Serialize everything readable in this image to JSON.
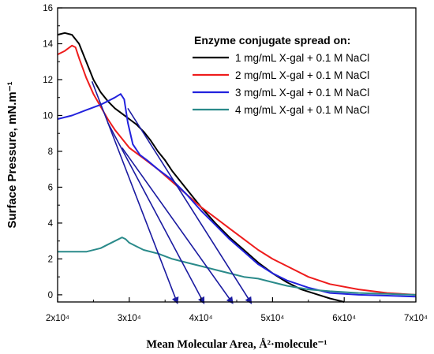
{
  "chart_data": {
    "type": "line",
    "xlabel": "Mean Molecular Area, Å²·molecule⁻¹",
    "ylabel": "Surface Pressure, mN.m⁻¹",
    "xlim": [
      20000,
      70000
    ],
    "ylim": [
      -0.4,
      16
    ],
    "x_ticks": [
      20000,
      30000,
      40000,
      50000,
      60000,
      70000
    ],
    "x_tick_labels": [
      "2x10⁴",
      "3x10⁴",
      "4x10⁴",
      "5x10⁴",
      "6x10⁴",
      "7x10⁴"
    ],
    "y_ticks": [
      0,
      2,
      4,
      6,
      8,
      10,
      12,
      14,
      16
    ],
    "y_tick_labels": [
      "0",
      "2",
      "4",
      "6",
      "8",
      "10",
      "12",
      "14",
      "16"
    ],
    "grid": false,
    "legend": {
      "title": "Enzyme conjugate spread on:",
      "placement": "top-right"
    },
    "series": [
      {
        "name": "1 mg/mL X-gal + 0.1 M NaCl",
        "color": "#000000",
        "x": [
          20000,
          21000,
          22000,
          23000,
          24000,
          25000,
          26000,
          27000,
          28000,
          29000,
          30000,
          31000,
          32000,
          33000,
          34000,
          35000,
          36000,
          38000,
          40000,
          42000,
          44000,
          46000,
          48000,
          50000,
          52000,
          54000,
          56000,
          58000,
          60000
        ],
        "y": [
          14.5,
          14.6,
          14.5,
          14.0,
          13.0,
          12.0,
          11.3,
          10.8,
          10.4,
          10.1,
          9.8,
          9.5,
          9.1,
          8.6,
          8.0,
          7.5,
          6.9,
          5.9,
          4.9,
          4.0,
          3.2,
          2.5,
          1.8,
          1.2,
          0.7,
          0.3,
          0.05,
          -0.2,
          -0.4
        ]
      },
      {
        "name": "2 mg/mL X-gal + 0.1 M NaCl",
        "color": "#ee1c1c",
        "x": [
          20000,
          21000,
          22000,
          22500,
          23000,
          24000,
          25000,
          26000,
          27000,
          28000,
          29000,
          30000,
          31000,
          32000,
          34000,
          36000,
          38000,
          40000,
          42000,
          44000,
          46000,
          48000,
          50000,
          52000,
          55000,
          58000,
          62000,
          66000,
          70000
        ],
        "y": [
          13.4,
          13.6,
          13.9,
          13.8,
          13.2,
          12.1,
          11.2,
          10.5,
          9.8,
          9.2,
          8.7,
          8.2,
          7.9,
          7.6,
          7.0,
          6.3,
          5.6,
          4.9,
          4.3,
          3.7,
          3.1,
          2.5,
          2.0,
          1.6,
          1.0,
          0.6,
          0.3,
          0.1,
          0.0
        ]
      },
      {
        "name": "3 mg/mL X-gal + 0.1 M NaCl",
        "color": "#2222dd",
        "x": [
          20000,
          22000,
          24000,
          26000,
          27000,
          28000,
          28800,
          29300,
          29800,
          30500,
          31500,
          32500,
          34000,
          36000,
          38000,
          40000,
          42000,
          44000,
          46000,
          48000,
          50000,
          52000,
          55000,
          58000,
          62000,
          66000,
          70000
        ],
        "y": [
          9.8,
          10.0,
          10.3,
          10.6,
          10.8,
          11.0,
          11.2,
          10.9,
          9.6,
          8.4,
          7.8,
          7.5,
          7.0,
          6.4,
          5.6,
          4.7,
          3.9,
          3.1,
          2.4,
          1.7,
          1.2,
          0.8,
          0.4,
          0.1,
          0.0,
          -0.05,
          -0.1
        ]
      },
      {
        "name": "4 mg/mL X-gal + 0.1 M NaCl",
        "color": "#2a8a8a",
        "x": [
          20000,
          22000,
          24000,
          26000,
          27000,
          28000,
          29000,
          29500,
          30000,
          31000,
          32000,
          34000,
          36000,
          38000,
          40000,
          42000,
          44000,
          46000,
          48000,
          50000,
          52000,
          55000,
          58000,
          62000,
          66000,
          70000
        ],
        "y": [
          2.4,
          2.4,
          2.4,
          2.6,
          2.8,
          3.0,
          3.2,
          3.1,
          2.9,
          2.7,
          2.5,
          2.3,
          2.0,
          1.8,
          1.6,
          1.4,
          1.2,
          1.0,
          0.9,
          0.7,
          0.5,
          0.3,
          0.2,
          0.1,
          0.05,
          0.0
        ]
      }
    ],
    "annotations": {
      "arrow_color": "#1a1aa0",
      "arrows": [
        {
          "from": [
            24800,
            11.9
          ],
          "to": [
            36700,
            -0.45
          ]
        },
        {
          "from": [
            27000,
            9.6
          ],
          "to": [
            40400,
            -0.45
          ]
        },
        {
          "from": [
            29000,
            8.2
          ],
          "to": [
            44400,
            -0.45
          ]
        },
        {
          "from": [
            29800,
            10.4
          ],
          "to": [
            47000,
            -0.45
          ]
        }
      ]
    }
  }
}
